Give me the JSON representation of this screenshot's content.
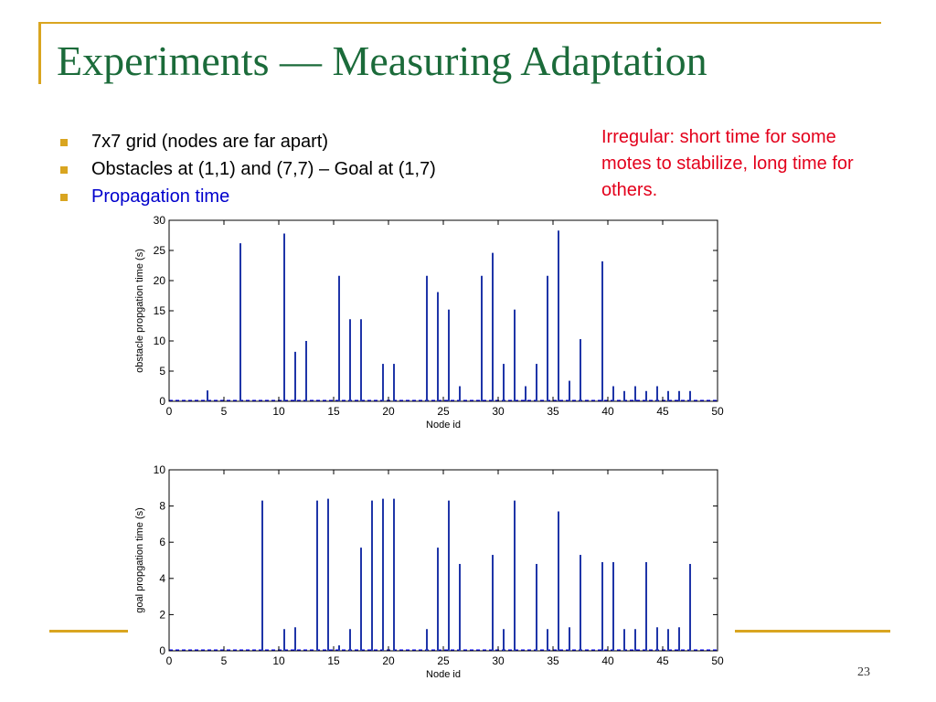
{
  "slide": {
    "title": "Experiments — Measuring Adaptation",
    "bullets": [
      {
        "text": "7x7 grid (nodes are far apart)",
        "color": "#000000"
      },
      {
        "text": "Obstacles at (1,1) and (7,7) – Goal at (1,7)",
        "color": "#000000"
      },
      {
        "text": "Propagation time",
        "color": "#0000cc"
      }
    ],
    "note": "Irregular: short time for some motes to stabilize, long time for others.",
    "page_number": "23"
  },
  "colors": {
    "accent": "#d9a520",
    "title": "#1b6b3a",
    "note": "#e3001b",
    "bar": "#1f35a8",
    "baseline": "#0000ff"
  },
  "chart_data": [
    {
      "type": "bar",
      "xlabel": "Node id",
      "ylabel": "obstacle propgation time (s)",
      "xlim": [
        0,
        50
      ],
      "ylim": [
        0,
        30
      ],
      "xticks": [
        0,
        5,
        10,
        15,
        20,
        25,
        30,
        35,
        40,
        45,
        50
      ],
      "yticks": [
        0,
        5,
        10,
        15,
        20,
        25,
        30
      ],
      "x": [
        3.5,
        6.5,
        10.5,
        11.5,
        12.5,
        15.5,
        16.5,
        17.5,
        19.5,
        20.5,
        23.5,
        24.5,
        25.5,
        26.5,
        28.5,
        29.5,
        30.5,
        31.5,
        32.5,
        33.5,
        34.5,
        35.5,
        36.5,
        37.5,
        39.5,
        40.5,
        41.5,
        42.5,
        43.5,
        44.5,
        45.5,
        46.5,
        47.5
      ],
      "values": [
        1.8,
        26.2,
        27.8,
        8.2,
        10.0,
        20.8,
        13.6,
        13.6,
        6.2,
        6.2,
        20.8,
        18.1,
        15.2,
        2.5,
        20.8,
        24.6,
        6.2,
        15.2,
        2.5,
        6.2,
        20.8,
        28.3,
        3.4,
        10.3,
        23.2,
        2.5,
        1.7,
        2.5,
        1.7,
        2.5,
        1.7,
        1.7,
        1.7
      ]
    },
    {
      "type": "bar",
      "xlabel": "Node id",
      "ylabel": "goal propgation time (s)",
      "xlim": [
        0,
        50
      ],
      "ylim": [
        0,
        10
      ],
      "xticks": [
        0,
        5,
        10,
        15,
        20,
        25,
        30,
        35,
        40,
        45,
        50
      ],
      "yticks": [
        0,
        2,
        4,
        6,
        8,
        10
      ],
      "x": [
        8.5,
        10.5,
        11.5,
        13.5,
        14.5,
        15.5,
        16.5,
        17.5,
        18.5,
        19.5,
        20.5,
        23.5,
        24.5,
        25.5,
        26.5,
        29.5,
        30.5,
        31.5,
        33.5,
        34.5,
        35.5,
        36.5,
        37.5,
        39.5,
        40.5,
        41.5,
        42.5,
        43.5,
        44.5,
        45.5,
        46.5,
        47.5
      ],
      "values": [
        8.3,
        1.2,
        1.3,
        8.3,
        8.4,
        0.3,
        1.2,
        5.7,
        8.3,
        8.4,
        8.4,
        1.2,
        5.7,
        8.3,
        4.8,
        5.3,
        1.2,
        8.3,
        4.8,
        1.2,
        7.7,
        1.3,
        5.3,
        4.9,
        4.9,
        1.2,
        1.2,
        4.9,
        1.3,
        1.2,
        1.3,
        4.8
      ]
    }
  ]
}
